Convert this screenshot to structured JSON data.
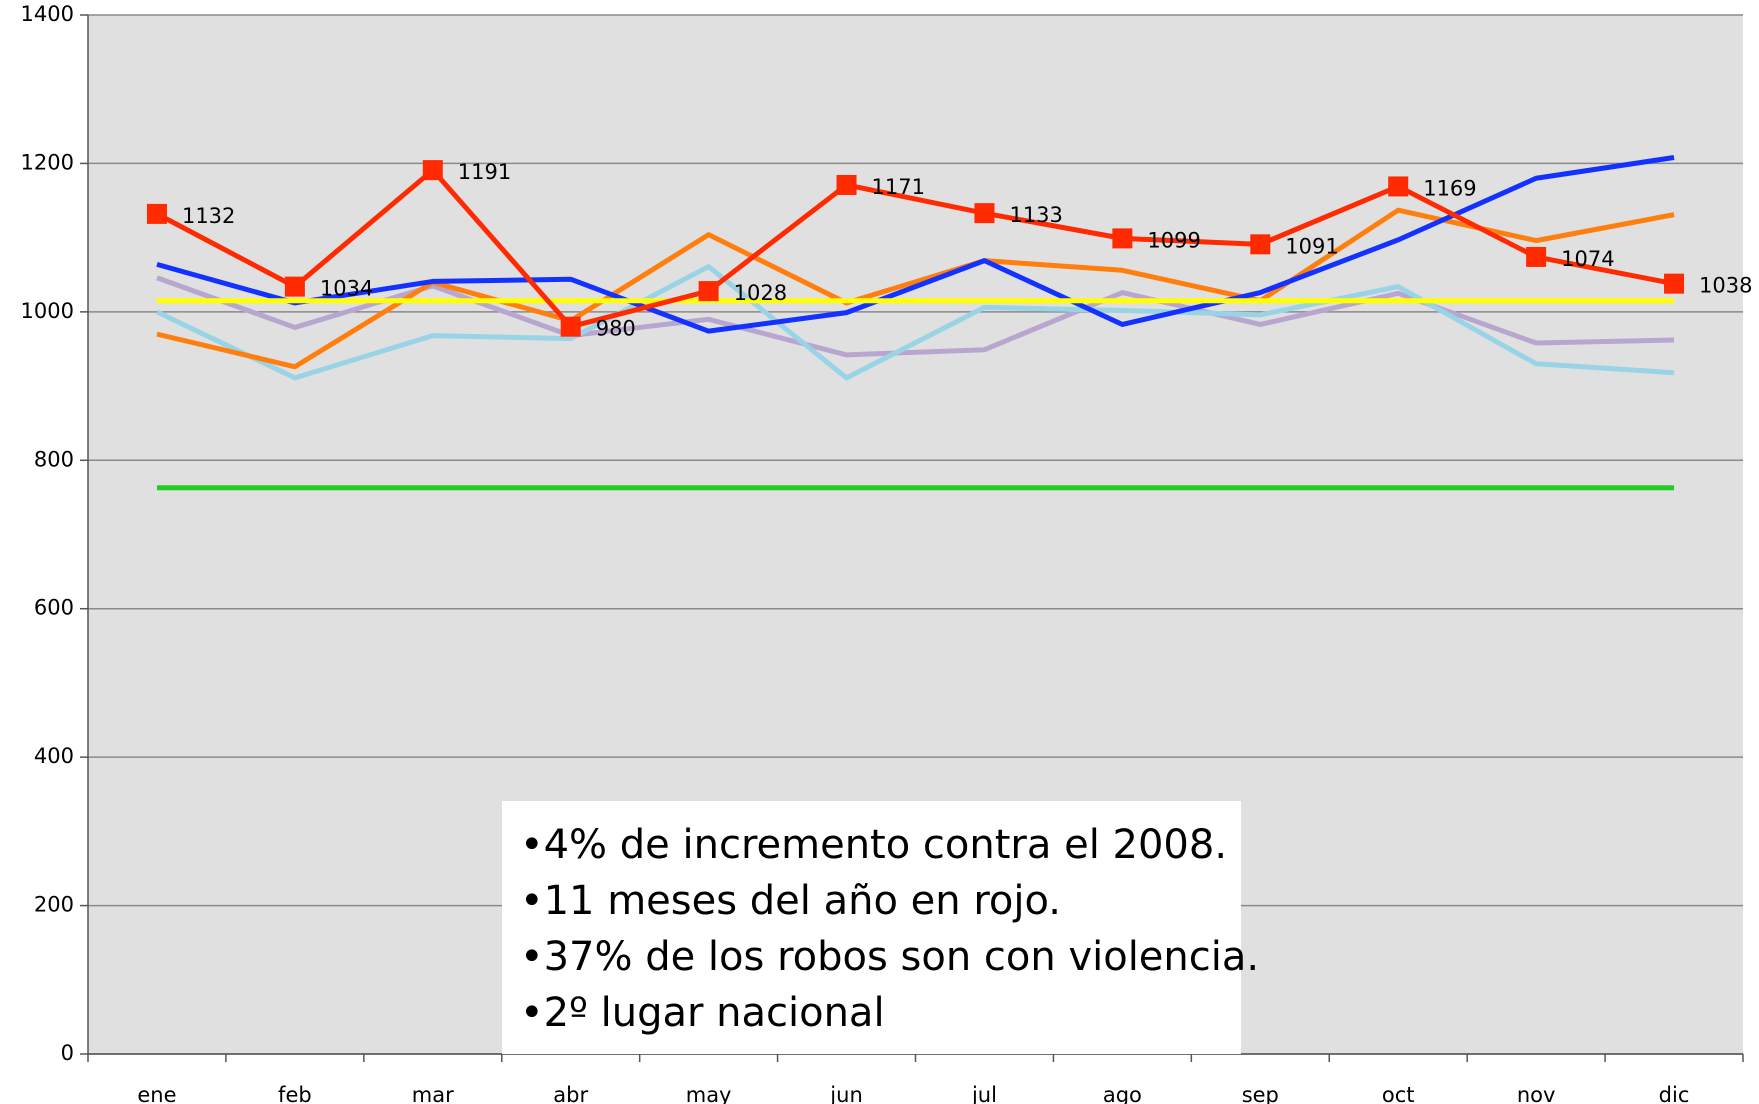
{
  "chart_data": {
    "type": "line",
    "categories": [
      "ene",
      "feb",
      "mar",
      "abr",
      "may",
      "jun",
      "jul",
      "ago",
      "sep",
      "oct",
      "nov",
      "dic"
    ],
    "ylim": [
      0,
      1400
    ],
    "yticks": [
      0,
      200,
      400,
      600,
      800,
      1000,
      1200,
      1400
    ],
    "grid": true,
    "series": [
      {
        "color": "#b9a6d0",
        "values": [
          1046,
          979,
          1035,
          968,
          990,
          942,
          949,
          1026,
          983,
          1025,
          958,
          962
        ]
      },
      {
        "color": "#99d4e6",
        "values": [
          1000,
          911,
          968,
          964,
          1061,
          911,
          1006,
          1002,
          996,
          1034,
          930,
          918
        ]
      },
      {
        "color": "#ff7f0e",
        "values": [
          970,
          926,
          1040,
          988,
          1104,
          1012,
          1069,
          1056,
          1015,
          1137,
          1096,
          1131
        ]
      },
      {
        "color": "#1432ff",
        "values": [
          1064,
          1012,
          1041,
          1044,
          974,
          999,
          1069,
          983,
          1026,
          1097,
          1180,
          1208
        ]
      },
      {
        "color": "#ffff00",
        "values": [
          1015,
          1015,
          1015,
          1015,
          1015,
          1015,
          1015,
          1015,
          1015,
          1015,
          1015,
          1015
        ]
      },
      {
        "color": "#22cc22",
        "values": [
          763,
          763,
          763,
          763,
          763,
          763,
          763,
          763,
          763,
          763,
          763,
          763
        ]
      },
      {
        "color": "#ff2a00",
        "markers": true,
        "data_labels": true,
        "values": [
          1132,
          1034,
          1191,
          980,
          1028,
          1171,
          1133,
          1099,
          1091,
          1169,
          1074,
          1038
        ]
      }
    ],
    "annotations": [
      "•4% de incremento contra el 2008.",
      "•11 meses del año en rojo.",
      "•37% de los robos son con violencia.",
      "•2º lugar nacional"
    ]
  }
}
